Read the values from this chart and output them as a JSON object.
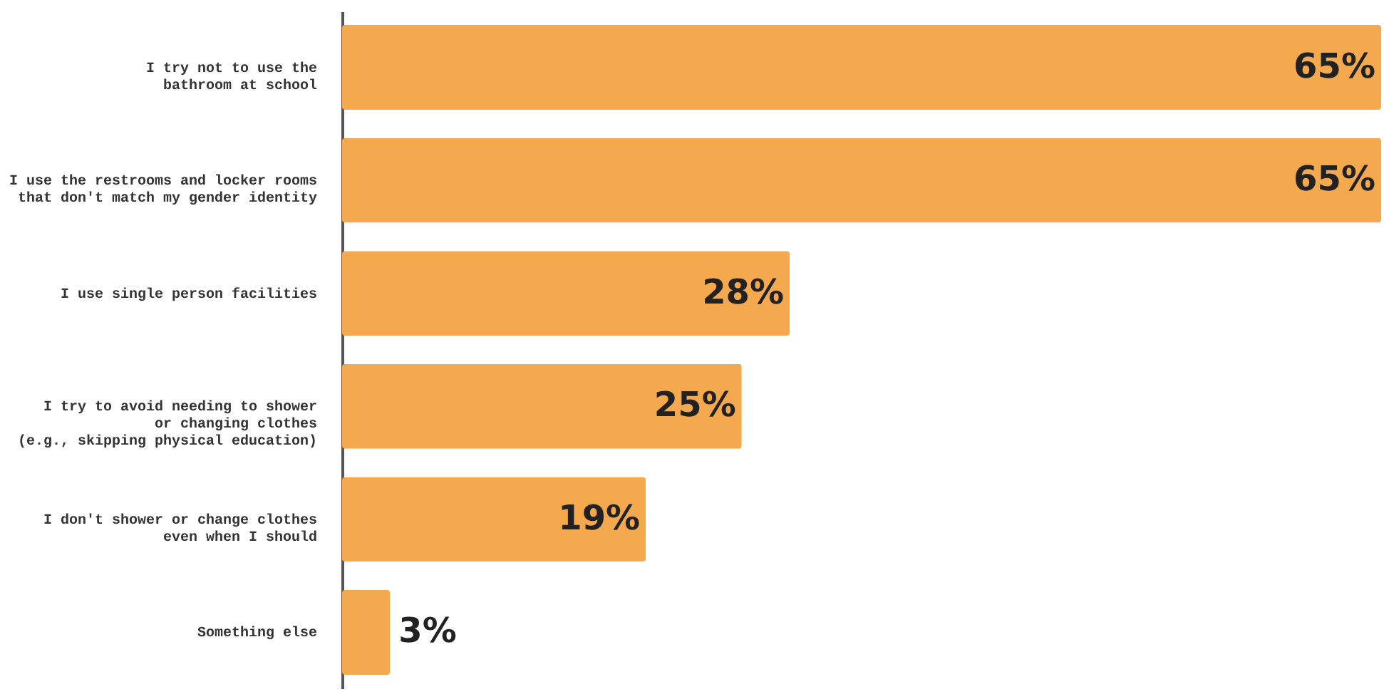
{
  "chart_data": {
    "type": "bar",
    "orientation": "horizontal",
    "categories": [
      "I try not to use the\nbathroom at school",
      "I use the restrooms and locker rooms\nthat don't match my gender identity",
      "I use single person facilities",
      "I try to avoid needing to shower\nor changing clothes\n(e.g., skipping physical education)",
      "I don't shower or change clothes\neven when I should",
      "Something else"
    ],
    "values": [
      65,
      65,
      28,
      25,
      19,
      3
    ],
    "value_labels": [
      "65%",
      "65%",
      "28%",
      "25%",
      "19%",
      "3%"
    ],
    "color": "#f5a94e",
    "grid": false
  }
}
